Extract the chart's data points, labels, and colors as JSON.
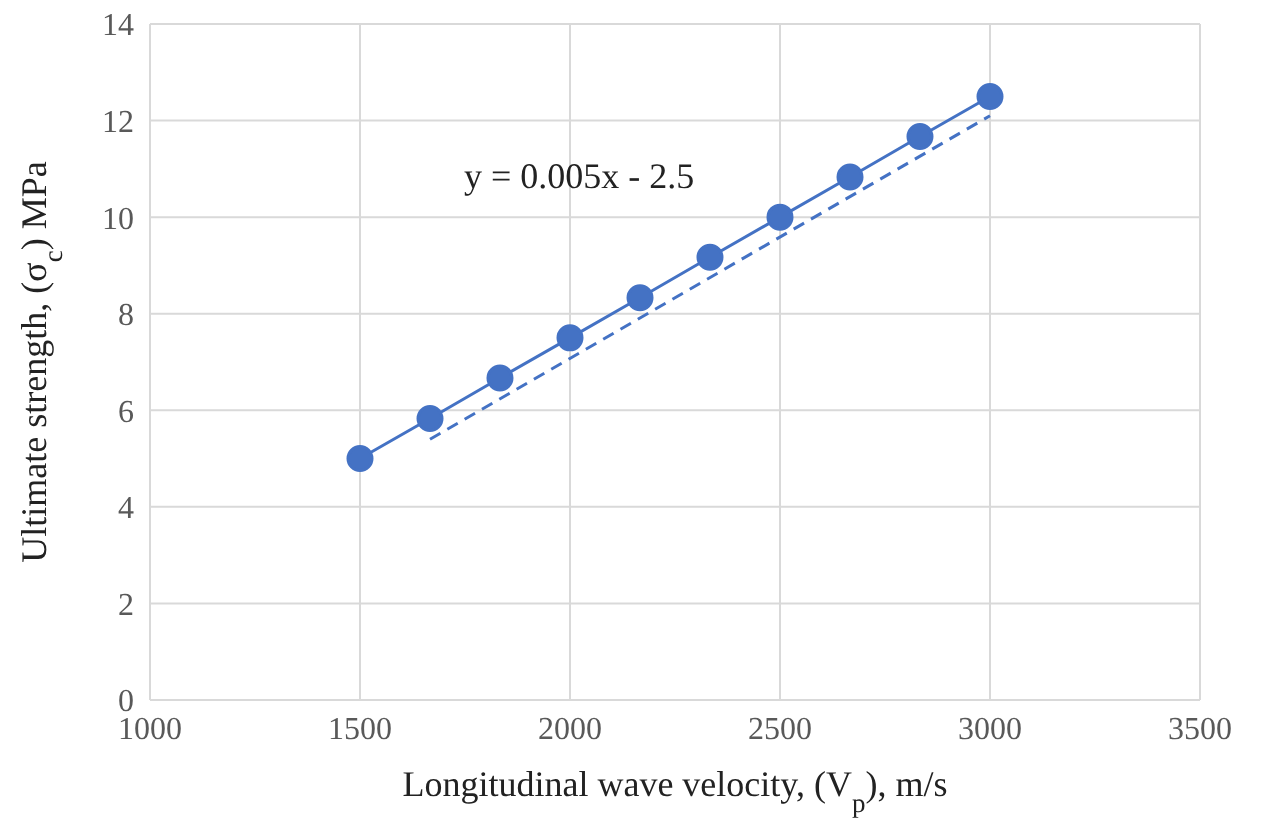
{
  "chart_data": {
    "type": "line",
    "xlabel": "Longitudinal wave velocity, (V$_{p}$), m/s",
    "ylabel": "Ultimate strength, (σ$_{c}$) MPa",
    "x": [
      1500,
      1666.7,
      1833.3,
      2000,
      2166.7,
      2333.3,
      2500,
      2666.7,
      2833.3,
      3000
    ],
    "series": [
      {
        "color": "#4472c4",
        "values": [
          5,
          5.83,
          6.67,
          7.5,
          8.33,
          9.17,
          10,
          10.83,
          11.67,
          12.5
        ],
        "marker": "circle",
        "line_style": "solid"
      },
      {
        "type": "line",
        "color": "#4472c4",
        "x": [
          1666.7,
          3000
        ],
        "values": [
          5.4,
          12.1
        ],
        "marker": "none",
        "line_style": "dashed"
      }
    ],
    "annotations": [
      "y = 0.005x - 2.5"
    ],
    "xlim": [
      1000,
      3500
    ],
    "xticks": [
      1000,
      1500,
      2000,
      2500,
      3000,
      3500
    ],
    "ylim": [
      0,
      14
    ],
    "yticks": [
      0,
      2,
      4,
      6,
      8,
      10,
      12,
      14
    ],
    "grid": true
  }
}
